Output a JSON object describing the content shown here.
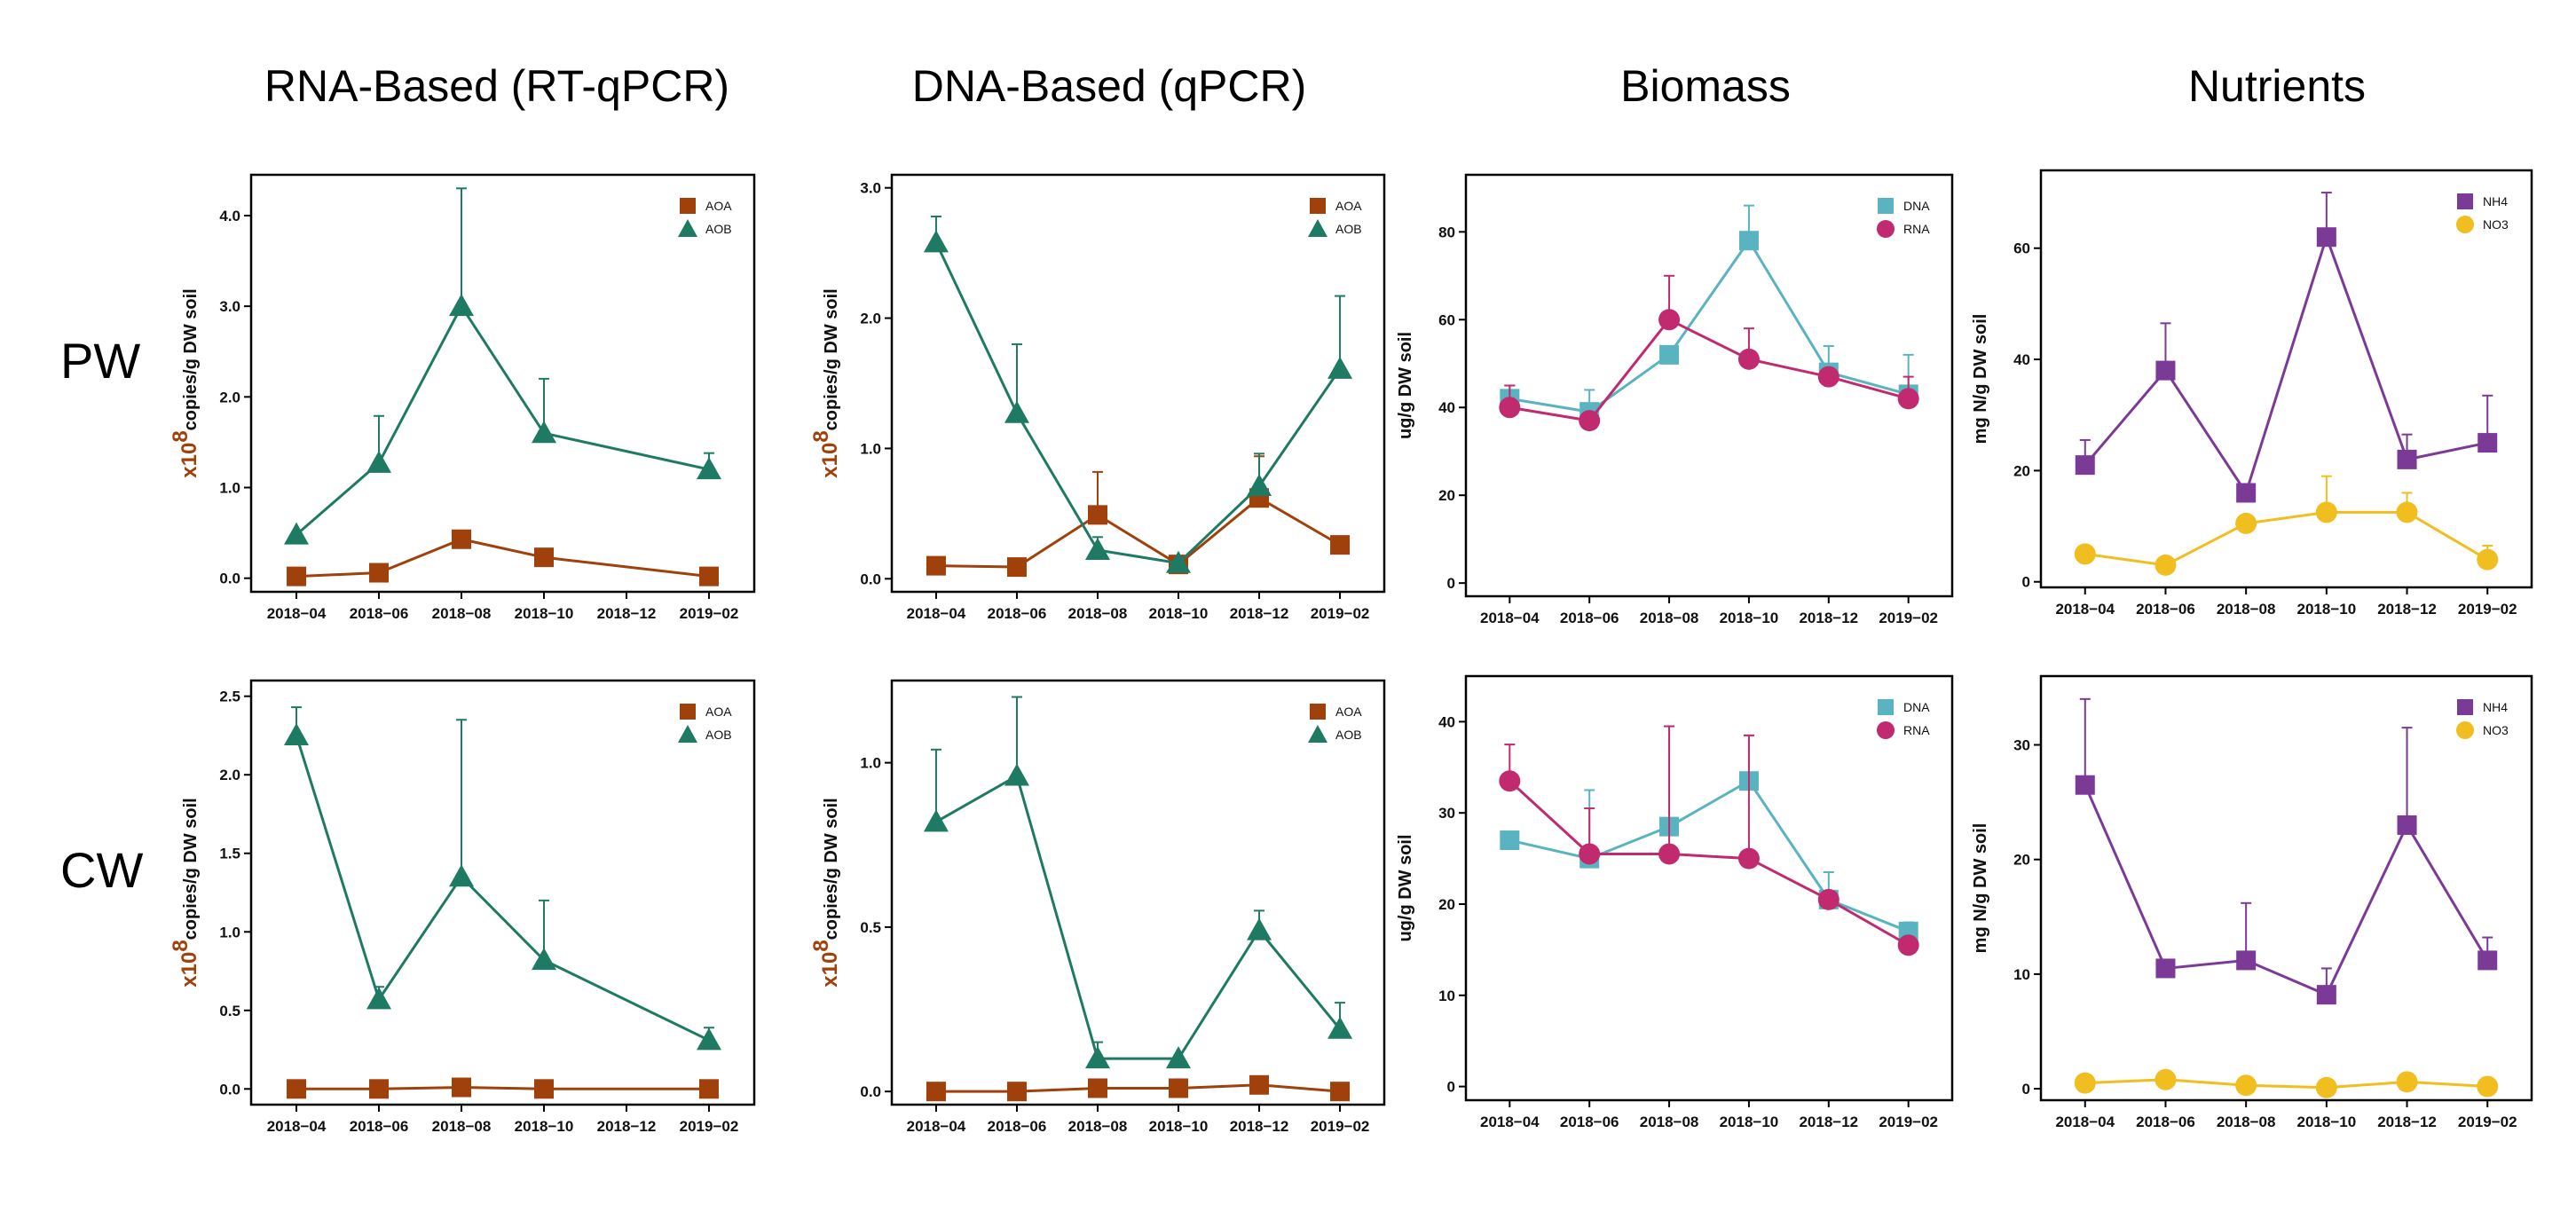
{
  "column_titles": [
    "RNA-Based (RT-qPCR)",
    "DNA-Based (qPCR)",
    "Biomass",
    "Nutrients"
  ],
  "row_labels": [
    "PW",
    "CW"
  ],
  "x_categories": [
    "2018−04",
    "2018−06",
    "2018−08",
    "2018−10",
    "2018−12",
    "2019−02"
  ],
  "colors": {
    "AOA": "#a0400a",
    "AOB": "#1f7a64",
    "DNA": "#5ab3c0",
    "RNA": "#c12a6e",
    "NH4": "#7a3a96",
    "NO3": "#f0be1e"
  },
  "chart_data": [
    {
      "type": "line",
      "panel": "PW-RNA",
      "ylabel_prefix": "x10",
      "ylabel_exp": "8",
      "ylabel_text": "copies/g DW soil",
      "ylim": [
        -0.15,
        4.45
      ],
      "yticks": [
        0.0,
        1.0,
        2.0,
        3.0,
        4.0
      ],
      "ytick_labels": [
        "0.0",
        "1.0",
        "2.0",
        "3.0",
        "4.0"
      ],
      "legend_position": "top-right",
      "grid": false,
      "series": [
        {
          "name": "AOA",
          "marker": "square",
          "x": [
            0,
            1,
            2,
            3,
            5
          ],
          "values": [
            0.02,
            0.06,
            0.43,
            0.23,
            0.02
          ],
          "err": [
            0.0,
            0.0,
            0.03,
            0.08,
            0.0
          ]
        },
        {
          "name": "AOB",
          "marker": "triangle",
          "x": [
            0,
            1,
            2,
            3,
            5
          ],
          "values": [
            0.48,
            1.27,
            3.0,
            1.6,
            1.2
          ],
          "err": [
            0.0,
            0.52,
            1.3,
            0.6,
            0.18
          ]
        }
      ]
    },
    {
      "type": "line",
      "panel": "PW-DNA",
      "ylabel_prefix": "x10",
      "ylabel_exp": "8",
      "ylabel_text": "copies/g DW soil",
      "ylim": [
        -0.1,
        3.1
      ],
      "yticks": [
        0.0,
        1.0,
        2.0,
        3.0
      ],
      "ytick_labels": [
        "0.0",
        "1.0",
        "2.0",
        "3.0"
      ],
      "legend_position": "top-right",
      "grid": false,
      "series": [
        {
          "name": "AOA",
          "marker": "square",
          "x": [
            0,
            1,
            2,
            3,
            4,
            5
          ],
          "values": [
            0.1,
            0.09,
            0.49,
            0.11,
            0.62,
            0.26
          ],
          "err": [
            0.0,
            0.0,
            0.33,
            0.0,
            0.32,
            0.03
          ]
        },
        {
          "name": "AOB",
          "marker": "triangle",
          "x": [
            0,
            1,
            2,
            3,
            4,
            5
          ],
          "values": [
            2.58,
            1.27,
            0.22,
            0.12,
            0.71,
            1.61
          ],
          "err": [
            0.2,
            0.53,
            0.1,
            0.0,
            0.25,
            0.56
          ]
        }
      ]
    },
    {
      "type": "line",
      "panel": "PW-Biomass",
      "ylabel_text": "ug/g DW soil",
      "ylim": [
        -3,
        93
      ],
      "yticks": [
        0,
        20,
        40,
        60,
        80
      ],
      "ytick_labels": [
        "0",
        "20",
        "40",
        "60",
        "80"
      ],
      "legend_position": "top-right",
      "grid": false,
      "series": [
        {
          "name": "DNA",
          "marker": "square",
          "x": [
            0,
            1,
            2,
            3,
            4,
            5
          ],
          "values": [
            42,
            39,
            52,
            78,
            48,
            43
          ],
          "err": [
            3,
            5,
            0,
            8,
            6,
            9
          ]
        },
        {
          "name": "RNA",
          "marker": "circle",
          "x": [
            0,
            1,
            2,
            3,
            4,
            5
          ],
          "values": [
            40,
            37,
            60,
            51,
            47,
            42
          ],
          "err": [
            5,
            0,
            10,
            7,
            0,
            5
          ]
        }
      ]
    },
    {
      "type": "line",
      "panel": "PW-Nutrients",
      "ylabel_text": "mg N/g DW soil",
      "ylim": [
        -1,
        74
      ],
      "yticks": [
        0,
        20,
        40,
        60
      ],
      "ytick_labels": [
        "0",
        "20",
        "40",
        "60"
      ],
      "legend_position": "top-right",
      "grid": false,
      "series": [
        {
          "name": "NH4",
          "marker": "square",
          "x": [
            0,
            1,
            2,
            3,
            4,
            5
          ],
          "values": [
            21,
            38,
            16,
            62,
            22,
            25
          ],
          "err": [
            4.5,
            8.5,
            0,
            8,
            4.5,
            8.5
          ]
        },
        {
          "name": "NO3",
          "marker": "circle",
          "x": [
            0,
            1,
            2,
            3,
            4,
            5
          ],
          "values": [
            5,
            3,
            10.5,
            12.5,
            12.5,
            4
          ],
          "err": [
            0,
            1,
            1.5,
            6.5,
            3.5,
            2.5
          ]
        }
      ]
    },
    {
      "type": "line",
      "panel": "CW-RNA",
      "ylabel_prefix": "x10",
      "ylabel_exp": "8",
      "ylabel_text": "copies/g DW soil",
      "ylim": [
        -0.1,
        2.6
      ],
      "yticks": [
        0.0,
        0.5,
        1.0,
        1.5,
        2.0,
        2.5
      ],
      "ytick_labels": [
        "0.0",
        "0.5",
        "1.0",
        "1.5",
        "2.0",
        "2.5"
      ],
      "legend_position": "top-right",
      "grid": false,
      "series": [
        {
          "name": "AOA",
          "marker": "square",
          "x": [
            0,
            1,
            2,
            3,
            5
          ],
          "values": [
            0.0,
            0.0,
            0.01,
            0.0,
            0.0
          ],
          "err": [
            0,
            0,
            0,
            0,
            0
          ]
        },
        {
          "name": "AOB",
          "marker": "triangle",
          "x": [
            0,
            1,
            2,
            3,
            5
          ],
          "values": [
            2.25,
            0.57,
            1.35,
            0.82,
            0.31
          ],
          "err": [
            0.18,
            0.08,
            1.0,
            0.38,
            0.08
          ]
        }
      ]
    },
    {
      "type": "line",
      "panel": "CW-DNA",
      "ylabel_prefix": "x10",
      "ylabel_exp": "8",
      "ylabel_text": "copies/g DW soil",
      "ylim": [
        -0.04,
        1.25
      ],
      "yticks": [
        0.0,
        0.5,
        1.0
      ],
      "ytick_labels": [
        "0.0",
        "0.5",
        "1.0"
      ],
      "legend_position": "top-right",
      "grid": false,
      "series": [
        {
          "name": "AOA",
          "marker": "square",
          "x": [
            0,
            1,
            2,
            3,
            4,
            5
          ],
          "values": [
            0.0,
            0.0,
            0.01,
            0.01,
            0.02,
            0.0
          ],
          "err": [
            0,
            0,
            0,
            0,
            0,
            0
          ]
        },
        {
          "name": "AOB",
          "marker": "triangle",
          "x": [
            0,
            1,
            2,
            3,
            4,
            5
          ],
          "values": [
            0.82,
            0.96,
            0.1,
            0.1,
            0.49,
            0.19
          ],
          "err": [
            0.22,
            0.24,
            0.05,
            0,
            0.06,
            0.08
          ]
        }
      ]
    },
    {
      "type": "line",
      "panel": "CW-Biomass",
      "ylabel_text": "ug/g DW soil",
      "ylim": [
        -1.5,
        45
      ],
      "yticks": [
        0,
        10,
        20,
        30,
        40
      ],
      "ytick_labels": [
        "0",
        "10",
        "20",
        "30",
        "40"
      ],
      "legend_position": "top-right",
      "grid": false,
      "series": [
        {
          "name": "DNA",
          "marker": "square",
          "x": [
            0,
            1,
            2,
            3,
            4,
            5
          ],
          "values": [
            27,
            25,
            28.5,
            33.5,
            20.5,
            17
          ],
          "err": [
            0,
            7.5,
            11,
            5,
            3,
            1
          ]
        },
        {
          "name": "RNA",
          "marker": "circle",
          "x": [
            0,
            1,
            2,
            3,
            4,
            5
          ],
          "values": [
            33.5,
            25.5,
            25.5,
            25,
            20.5,
            15.5
          ],
          "err": [
            4,
            5,
            14,
            13.5,
            0,
            0
          ]
        }
      ]
    },
    {
      "type": "line",
      "panel": "CW-Nutrients",
      "ylabel_text": "mg N/g DW soil",
      "ylim": [
        -1,
        36
      ],
      "yticks": [
        0,
        10,
        20,
        30
      ],
      "ytick_labels": [
        "0",
        "10",
        "20",
        "30"
      ],
      "legend_position": "top-right",
      "grid": false,
      "series": [
        {
          "name": "NH4",
          "marker": "square",
          "x": [
            0,
            1,
            2,
            3,
            4,
            5
          ],
          "values": [
            26.5,
            10.5,
            11.2,
            8.2,
            23,
            11.2
          ],
          "err": [
            7.5,
            0,
            5,
            2.3,
            8.5,
            2
          ]
        },
        {
          "name": "NO3",
          "marker": "circle",
          "x": [
            0,
            1,
            2,
            3,
            4,
            5
          ],
          "values": [
            0.5,
            0.8,
            0.3,
            0.1,
            0.6,
            0.2
          ],
          "err": [
            0,
            0,
            0,
            0,
            0,
            0
          ]
        }
      ]
    }
  ]
}
